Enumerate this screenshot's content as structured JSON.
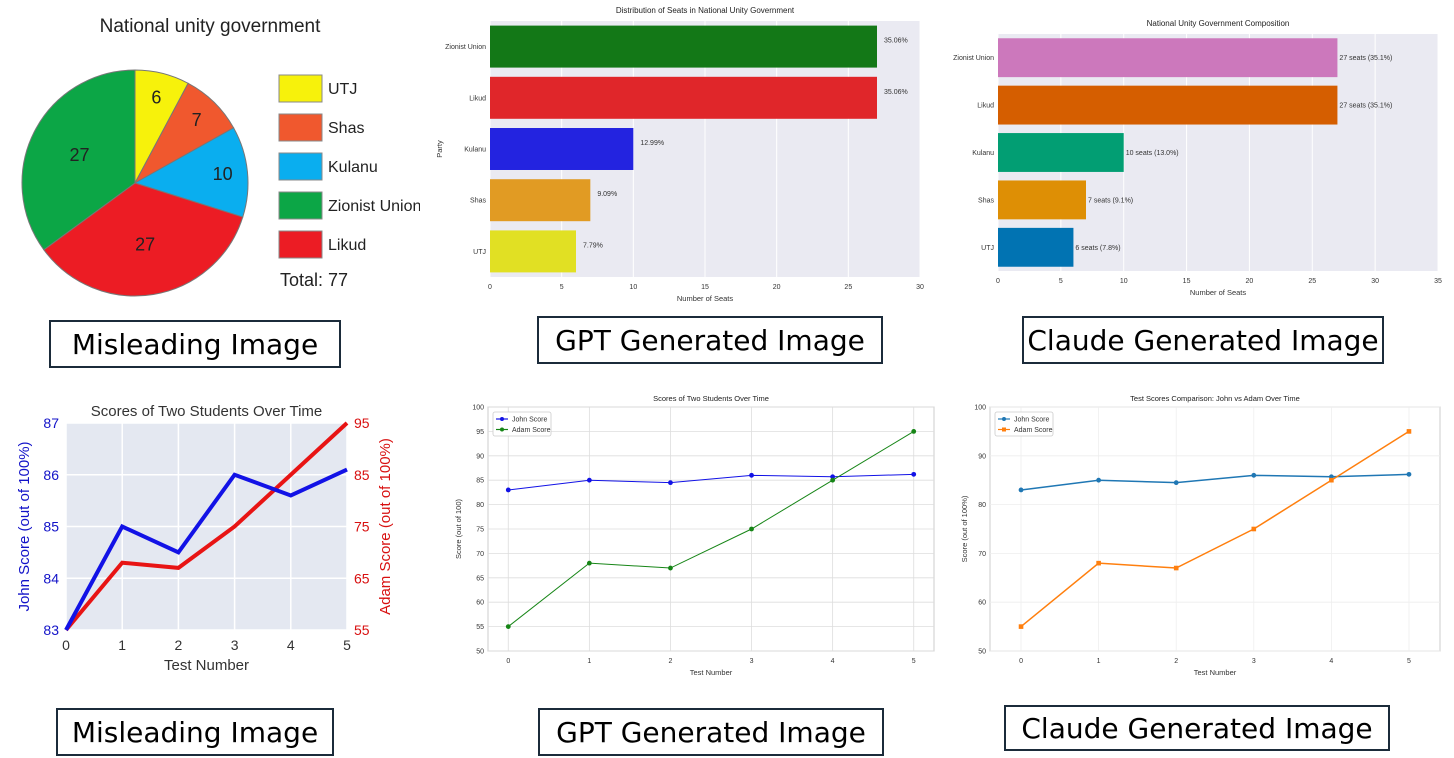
{
  "captions": {
    "c1": "Misleading Image",
    "c2": "GPT Generated Image",
    "c3": "Claude Generated Image",
    "c4": "Misleading Image",
    "c5": "GPT Generated Image",
    "c6": "Claude Generated Image"
  },
  "colors": {
    "party": {
      "UTJ": "#f7f20b",
      "Shas": "#f0582e",
      "Kulanu": "#0aaeef",
      "Zionist Union": "#0ca646",
      "Likud": "#ec1c24"
    },
    "gpt_party": {
      "Zionist Union": "#137817",
      "Likud": "#e0262a",
      "Kulanu": "#2323e0",
      "Shas": "#e19b23",
      "UTJ": "#e1e023"
    },
    "claude_party": {
      "Zionist Union": "#cc78bc",
      "Likud": "#d55e00",
      "Kulanu": "#029e73",
      "Shas": "#de8f05",
      "UTJ": "#0173b2"
    },
    "john": "#1212e6",
    "adam_misleading": "#e81414",
    "gpt_adam": "#168516",
    "claude_john": "#1f77b4",
    "claude_adam": "#ff7f0e"
  },
  "chart_data": [
    {
      "id": "pie-misleading",
      "type": "pie",
      "title": "National unity government",
      "slices": [
        {
          "label": "UTJ",
          "value": 6
        },
        {
          "label": "Shas",
          "value": 7
        },
        {
          "label": "Kulanu",
          "value": 10
        },
        {
          "label": "Likud",
          "value": 27
        },
        {
          "label": "Zionist Union",
          "value": 27
        }
      ],
      "legend": [
        "UTJ",
        "Shas",
        "Kulanu",
        "Zionist Union",
        "Likud"
      ],
      "total_label": "Total: 77",
      "legend_position": "right"
    },
    {
      "id": "bar-gpt",
      "type": "bar",
      "orientation": "horizontal",
      "title": "Distribution of Seats in National Unity Government",
      "xlabel": "Number of Seats",
      "ylabel": "Party",
      "categories": [
        "Zionist Union",
        "Likud",
        "Kulanu",
        "Shas",
        "UTJ"
      ],
      "values": [
        27,
        27,
        10,
        7,
        6
      ],
      "data_labels": [
        "35.06%",
        "35.06%",
        "12.99%",
        "9.09%",
        "7.79%"
      ],
      "xlim": [
        0,
        30
      ],
      "xticks": [
        "0",
        "5",
        "10",
        "15",
        "20",
        "25",
        "30"
      ],
      "grid": true
    },
    {
      "id": "bar-claude",
      "type": "bar",
      "orientation": "horizontal",
      "title": "National Unity Government Composition",
      "xlabel": "Number of Seats",
      "ylabel": "",
      "categories": [
        "Zionist Union",
        "Likud",
        "Kulanu",
        "Shas",
        "UTJ"
      ],
      "values": [
        27,
        27,
        10,
        7,
        6
      ],
      "data_labels": [
        "27 seats (35.1%)",
        "27 seats (35.1%)",
        "10 seats (13.0%)",
        "7 seats (9.1%)",
        "6 seats (7.8%)"
      ],
      "xlim": [
        0,
        35
      ],
      "xticks": [
        "0",
        "5",
        "10",
        "15",
        "20",
        "25",
        "30",
        "35"
      ],
      "grid": true
    },
    {
      "id": "line-misleading",
      "type": "line",
      "title": "Scores of Two Students Over Time",
      "xlabel": "Test Number",
      "ylabel": "John Score (out of 100%)",
      "y2label": "Adam Score (out of 100%)",
      "x": [
        0,
        1,
        2,
        3,
        4,
        5
      ],
      "series": [
        {
          "name": "John",
          "axis": "left",
          "values": [
            83,
            85,
            84.5,
            86,
            85.6,
            86.1
          ]
        },
        {
          "name": "Adam",
          "axis": "right",
          "values": [
            55,
            68,
            67,
            75,
            85,
            95
          ]
        }
      ],
      "ylim": [
        83,
        87
      ],
      "y2lim": [
        55,
        95
      ],
      "yticks": [
        "83",
        "84",
        "85",
        "86",
        "87"
      ],
      "y2ticks": [
        "55",
        "65",
        "75",
        "85",
        "95"
      ],
      "xticks": [
        "0",
        "1",
        "2",
        "3",
        "4",
        "5"
      ],
      "grid": true
    },
    {
      "id": "line-gpt",
      "type": "line",
      "title": "Scores of Two Students Over Time",
      "xlabel": "Test Number",
      "ylabel": "Score (out of 100)",
      "x": [
        0,
        1,
        2,
        3,
        4,
        5
      ],
      "series": [
        {
          "name": "John Score",
          "values": [
            83,
            85,
            84.5,
            86,
            85.7,
            86.2
          ]
        },
        {
          "name": "Adam Score",
          "values": [
            55,
            68,
            67,
            75,
            85,
            95
          ]
        }
      ],
      "ylim": [
        50,
        100
      ],
      "yticks": [
        "50",
        "55",
        "60",
        "65",
        "70",
        "75",
        "80",
        "85",
        "90",
        "95",
        "100"
      ],
      "xticks": [
        "0",
        "1",
        "2",
        "3",
        "4",
        "5"
      ],
      "legend_position": "top-left",
      "grid": true
    },
    {
      "id": "line-claude",
      "type": "line",
      "title": "Test Scores Comparison: John vs Adam Over Time",
      "xlabel": "Test Number",
      "ylabel": "Score (out of 100%)",
      "x": [
        0,
        1,
        2,
        3,
        4,
        5
      ],
      "series": [
        {
          "name": "John Score",
          "values": [
            83,
            85,
            84.5,
            86,
            85.7,
            86.2
          ]
        },
        {
          "name": "Adam Score",
          "values": [
            55,
            68,
            67,
            75,
            85,
            95
          ]
        }
      ],
      "ylim": [
        50,
        100
      ],
      "yticks": [
        "50",
        "60",
        "70",
        "80",
        "90",
        "100"
      ],
      "xticks": [
        "0",
        "1",
        "2",
        "3",
        "4",
        "5"
      ],
      "legend_position": "top-left",
      "grid": true
    }
  ]
}
